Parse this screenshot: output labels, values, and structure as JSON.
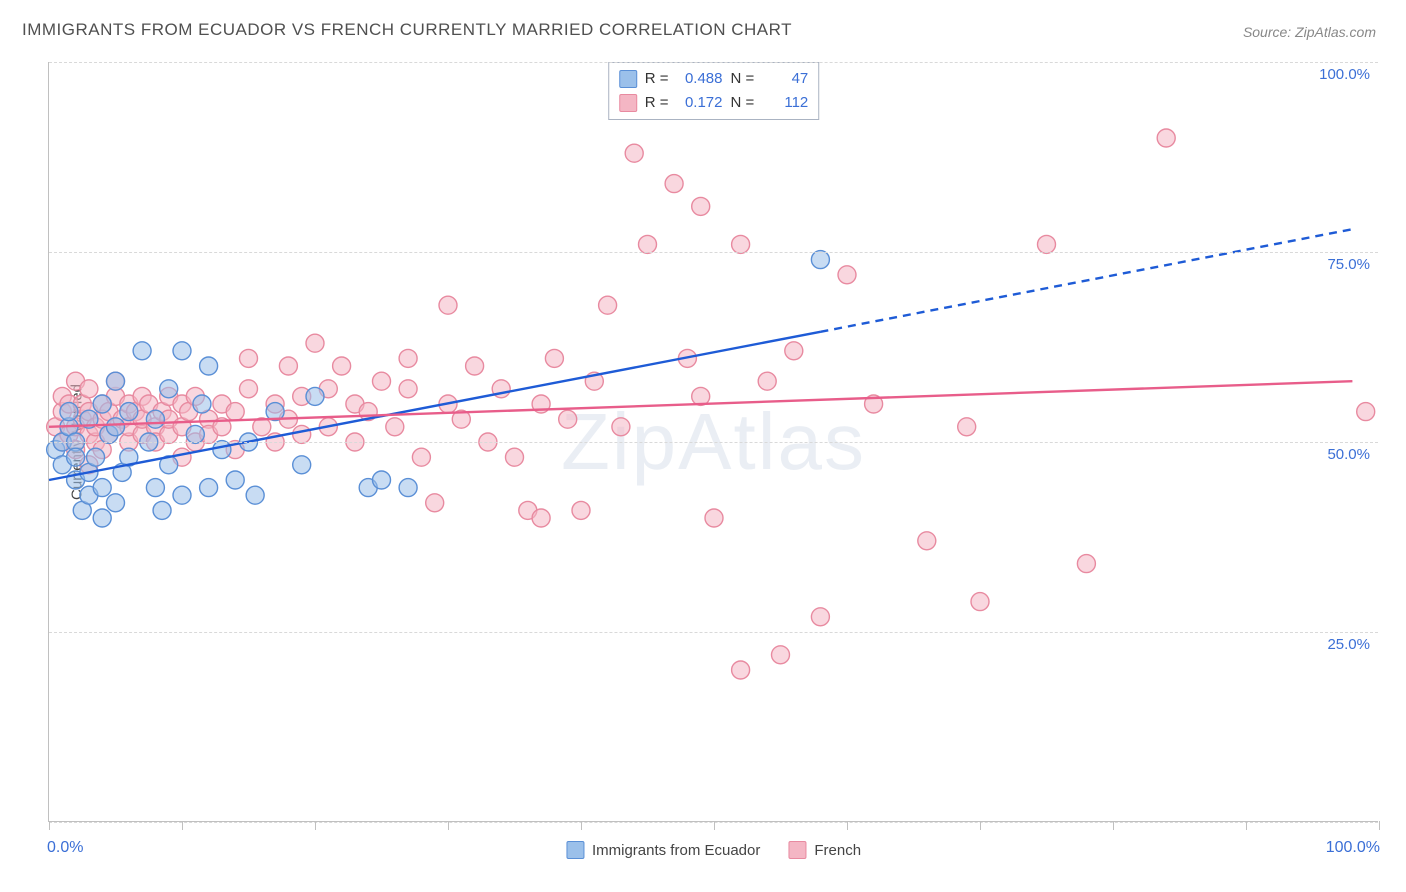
{
  "title": "IMMIGRANTS FROM ECUADOR VS FRENCH CURRENTLY MARRIED CORRELATION CHART",
  "source_label": "Source: ZipAtlas.com",
  "watermark": "ZipAtlas",
  "yaxis_title": "Currently Married",
  "chart": {
    "type": "scatter",
    "background_color": "#ffffff",
    "grid_color": "#d9d9d9",
    "axis_color": "#c0c0c0",
    "tick_label_color": "#3b6fd6",
    "xlim": [
      0,
      100
    ],
    "ylim": [
      0,
      100
    ],
    "xticks": [
      0,
      10,
      20,
      30,
      40,
      50,
      60,
      70,
      80,
      90,
      100
    ],
    "yticks": [
      0,
      25,
      50,
      75,
      100
    ],
    "ytick_labels": [
      "0.0%",
      "25.0%",
      "50.0%",
      "75.0%",
      "100.0%"
    ],
    "xaxis_label_0": "0.0%",
    "xaxis_label_100": "100.0%",
    "marker_radius": 9,
    "marker_stroke_width": 1.4,
    "trend_line_width": 2.4,
    "series": [
      {
        "name": "Immigrants from Ecuador",
        "fill_color": "#9bc0ea",
        "stroke_color": "#5a8fd6",
        "fill_opacity": 0.55,
        "trend_color": "#1e5bd6",
        "trend_solid": {
          "x1": 0,
          "y1": 45,
          "x2": 58,
          "y2": 64.5
        },
        "trend_dashed": {
          "x1": 58,
          "y1": 64.5,
          "x2": 98,
          "y2": 78
        },
        "r_value": "0.488",
        "n_value": "47",
        "points": [
          [
            0.5,
            49
          ],
          [
            1,
            47
          ],
          [
            1,
            50
          ],
          [
            1.5,
            52
          ],
          [
            1.5,
            54
          ],
          [
            2,
            50
          ],
          [
            2,
            45
          ],
          [
            2,
            48
          ],
          [
            2.5,
            41
          ],
          [
            3,
            43
          ],
          [
            3,
            46
          ],
          [
            3,
            53
          ],
          [
            3.5,
            48
          ],
          [
            4,
            55
          ],
          [
            4,
            44
          ],
          [
            4,
            40
          ],
          [
            4.5,
            51
          ],
          [
            5,
            52
          ],
          [
            5,
            58
          ],
          [
            5,
            42
          ],
          [
            5.5,
            46
          ],
          [
            6,
            48
          ],
          [
            6,
            54
          ],
          [
            7,
            62
          ],
          [
            7.5,
            50
          ],
          [
            8,
            53
          ],
          [
            8,
            44
          ],
          [
            8.5,
            41
          ],
          [
            9,
            57
          ],
          [
            9,
            47
          ],
          [
            10,
            43
          ],
          [
            10,
            62
          ],
          [
            11,
            51
          ],
          [
            11.5,
            55
          ],
          [
            12,
            44
          ],
          [
            12,
            60
          ],
          [
            13,
            49
          ],
          [
            14,
            45
          ],
          [
            15,
            50
          ],
          [
            15.5,
            43
          ],
          [
            17,
            54
          ],
          [
            19,
            47
          ],
          [
            20,
            56
          ],
          [
            24,
            44
          ],
          [
            25,
            45
          ],
          [
            27,
            44
          ],
          [
            58,
            74
          ]
        ]
      },
      {
        "name": "French",
        "fill_color": "#f4b6c4",
        "stroke_color": "#e88aa0",
        "fill_opacity": 0.55,
        "trend_color": "#e85d8a",
        "trend_solid": {
          "x1": 0,
          "y1": 52,
          "x2": 98,
          "y2": 58
        },
        "trend_dashed": null,
        "r_value": "0.172",
        "n_value": "112",
        "points": [
          [
            0.5,
            52
          ],
          [
            1,
            50
          ],
          [
            1,
            54
          ],
          [
            1,
            56
          ],
          [
            1.5,
            51
          ],
          [
            1.5,
            55
          ],
          [
            2,
            49
          ],
          [
            2,
            52
          ],
          [
            2,
            58
          ],
          [
            2.5,
            53
          ],
          [
            2.5,
            55
          ],
          [
            3,
            51
          ],
          [
            3,
            54
          ],
          [
            3,
            47
          ],
          [
            3,
            57
          ],
          [
            3.5,
            50
          ],
          [
            3.5,
            52
          ],
          [
            4,
            55
          ],
          [
            4,
            53
          ],
          [
            4,
            49
          ],
          [
            4.5,
            51
          ],
          [
            4.5,
            54
          ],
          [
            5,
            56
          ],
          [
            5,
            52
          ],
          [
            5,
            58
          ],
          [
            5.5,
            53
          ],
          [
            6,
            50
          ],
          [
            6,
            55
          ],
          [
            6,
            52
          ],
          [
            6.5,
            54
          ],
          [
            7,
            51
          ],
          [
            7,
            56
          ],
          [
            7,
            53
          ],
          [
            7.5,
            55
          ],
          [
            8,
            52
          ],
          [
            8,
            50
          ],
          [
            8.5,
            54
          ],
          [
            9,
            56
          ],
          [
            9,
            51
          ],
          [
            9,
            53
          ],
          [
            10,
            55
          ],
          [
            10,
            52
          ],
          [
            10,
            48
          ],
          [
            10.5,
            54
          ],
          [
            11,
            50
          ],
          [
            11,
            56
          ],
          [
            12,
            53
          ],
          [
            12,
            51
          ],
          [
            13,
            55
          ],
          [
            13,
            52
          ],
          [
            14,
            49
          ],
          [
            14,
            54
          ],
          [
            15,
            57
          ],
          [
            15,
            61
          ],
          [
            16,
            52
          ],
          [
            17,
            50
          ],
          [
            17,
            55
          ],
          [
            18,
            60
          ],
          [
            18,
            53
          ],
          [
            19,
            51
          ],
          [
            19,
            56
          ],
          [
            20,
            63
          ],
          [
            21,
            57
          ],
          [
            21,
            52
          ],
          [
            22,
            60
          ],
          [
            23,
            50
          ],
          [
            23,
            55
          ],
          [
            24,
            54
          ],
          [
            25,
            58
          ],
          [
            26,
            52
          ],
          [
            27,
            57
          ],
          [
            27,
            61
          ],
          [
            28,
            48
          ],
          [
            29,
            42
          ],
          [
            30,
            55
          ],
          [
            30,
            68
          ],
          [
            31,
            53
          ],
          [
            32,
            60
          ],
          [
            33,
            50
          ],
          [
            34,
            57
          ],
          [
            35,
            48
          ],
          [
            36,
            41
          ],
          [
            37,
            55
          ],
          [
            37,
            40
          ],
          [
            38,
            61
          ],
          [
            39,
            53
          ],
          [
            40,
            41
          ],
          [
            41,
            58
          ],
          [
            42,
            68
          ],
          [
            43,
            52
          ],
          [
            44,
            88
          ],
          [
            45,
            76
          ],
          [
            47,
            84
          ],
          [
            48,
            61
          ],
          [
            49,
            56
          ],
          [
            49,
            81
          ],
          [
            50,
            40
          ],
          [
            52,
            20
          ],
          [
            52,
            76
          ],
          [
            54,
            58
          ],
          [
            55,
            22
          ],
          [
            56,
            62
          ],
          [
            58,
            27
          ],
          [
            60,
            72
          ],
          [
            62,
            55
          ],
          [
            66,
            37
          ],
          [
            69,
            52
          ],
          [
            70,
            29
          ],
          [
            75,
            76
          ],
          [
            78,
            34
          ],
          [
            84,
            90
          ],
          [
            99,
            54
          ]
        ]
      }
    ]
  },
  "legend_top": {
    "r_label": "R  =",
    "n_label": "N  ="
  },
  "legend_bottom": {
    "items": [
      "Immigrants from Ecuador",
      "French"
    ]
  }
}
